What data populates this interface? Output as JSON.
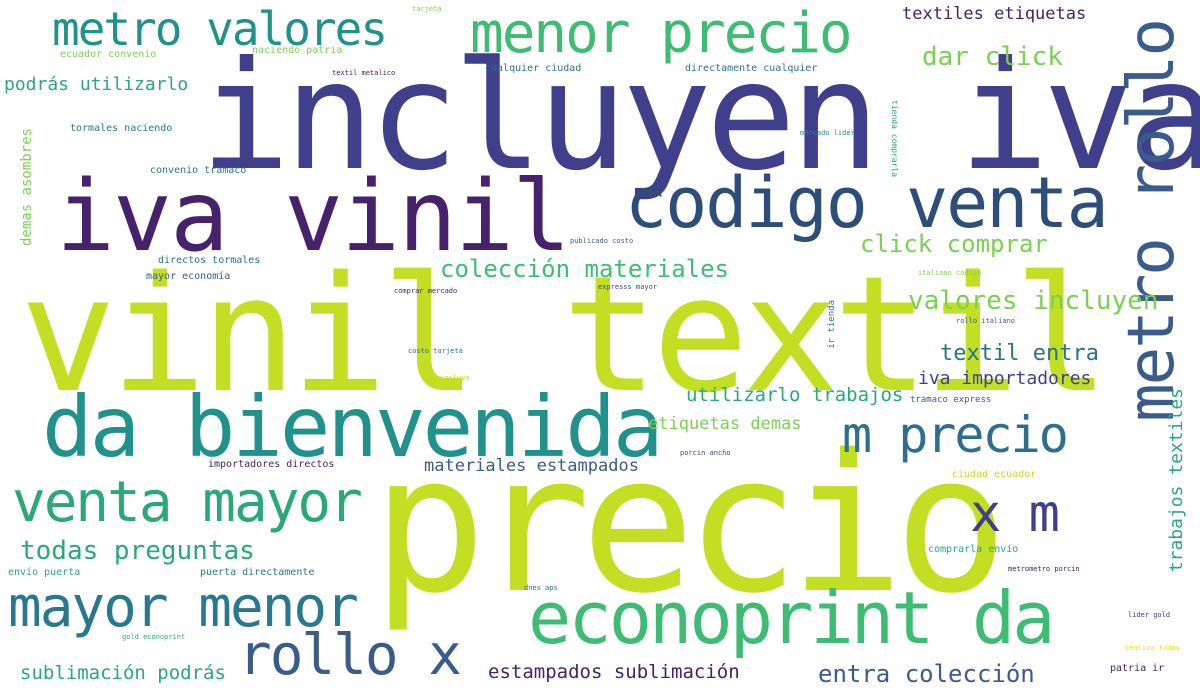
{
  "palette": {
    "dark_purple": "#45226b",
    "indigo": "#3f3f8c",
    "slate_blue": "#3b5b8c",
    "teal_blue": "#2e6f8e",
    "teal": "#21918c",
    "sea_green": "#2aa877",
    "green": "#3fbc73",
    "light_green": "#7ad151",
    "yellow_green": "#c2df23",
    "yellow": "#dde318"
  },
  "words": {
    "incluyen_iva": "incluyen iva",
    "vinil_textil": "vinil textil",
    "precio": "precio",
    "iva_vinil": "iva vinil",
    "codigo_venta": "codigo venta",
    "da_bienvenida": "da bienvenida",
    "metro_rollo": "metro rollo",
    "econoprint_da": "econoprint da",
    "venta_mayor": "venta mayor",
    "mayor_menor": "mayor menor",
    "menor_precio": "menor precio",
    "metro_valores": "metro valores",
    "m_precio": "m precio",
    "rollo_x": "rollo x",
    "x_m": "x m",
    "todas_preguntas": "todas preguntas",
    "coleccion_materiales": "colección materiales",
    "click_comprar": "click comprar",
    "valores_incluyen": "valores incluyen",
    "dar_click": "dar click",
    "textil_entra": "textil entra",
    "entra_coleccion": "entra colección",
    "estampados_sublimacion": "estampados sublimación",
    "sublimacion_podras": "sublimación podrás",
    "utilizarlo_trabajos": "utilizarlo trabajos",
    "etiquetas_demas": "etiquetas demas",
    "materiales_estampados": "materiales estampados",
    "iva_importadores": "iva importadores",
    "textiles_etiquetas": "textiles etiquetas",
    "podras_utilizarlo": "podrás utilizarlo",
    "trabajos_textiles": "trabajos textiles",
    "demas_asombres": "demas asombres",
    "ecuador_convenio": "ecuador convenio",
    "naciendo_patria": "naciendo patria",
    "cualquier_ciudad": "cualquier ciudad",
    "directamente_cualquier": "directamente cualquier",
    "textil_metalico": "textil metalico",
    "tormales_naciendo": "tormales naciendo",
    "convenio_tramaco": "convenio tramaco",
    "directos_tormales": "directos tormales",
    "mayor_economia": "mayor economía",
    "comprar_mercado": "comprar mercado",
    "publicado_costo": "publicado costo",
    "mercado_lider": "mercado lider",
    "tienda_comprarla": "tienda comprarla",
    "italiano_codigo": "italiano codigo",
    "rollo_italiano": "rollo italiano",
    "ir_tienda": "ir tienda",
    "costo_tarjeta": "costo tarjeta",
    "incluye": "incluye",
    "tramaco_express": "tramaco express",
    "importadores_directos": "importadores directos",
    "porcin_ancho": "porcin ancho",
    "ciudad_ecuador": "ciudad ecuador",
    "comprarla_envio": "comprarla envío",
    "envio_puerta": "envío puerta",
    "puerta_directamente": "puerta directamente",
    "metrometro_porcin": "metrometro porcin",
    "lider_gold": "lider gold",
    "gold_econoprint": "gold econoprint",
    "realiza_todas": "realiza todas",
    "patria_ir": "patria ir",
    "dnes_aps": "dnes aps",
    "expresss_mayor": "expresss mayor",
    "tarjeta": "tarjeta"
  }
}
